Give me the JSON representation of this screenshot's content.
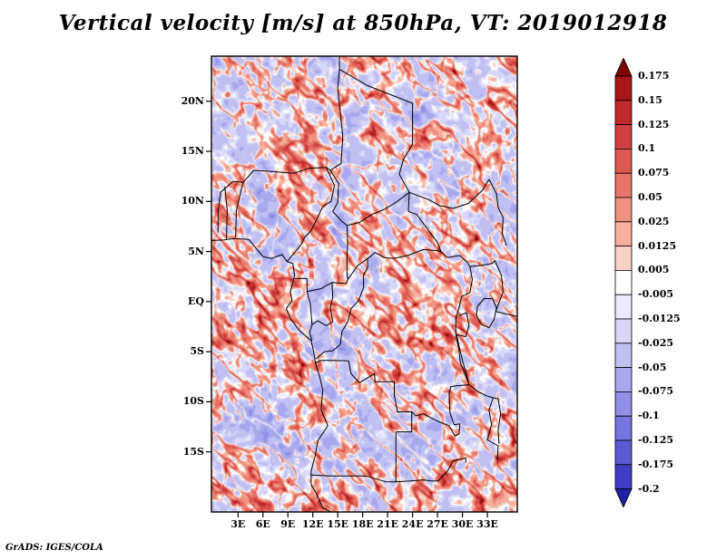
{
  "title": "Vertical velocity [m/s] at 850hPa, VT: 2019012918",
  "footer": "GrADS: IGES/COLA",
  "chart_data": {
    "type": "heatmap",
    "title": "Vertical velocity [m/s] at 850hPa, VT: 2019012918",
    "variable": "Vertical velocity",
    "units": "m/s",
    "pressure_level": "850hPa",
    "valid_time": "2019012918",
    "projection": "latlon",
    "grid": "off",
    "x_axis": {
      "tick_labels": [
        "3E",
        "6E",
        "9E",
        "12E",
        "15E",
        "18E",
        "21E",
        "24E",
        "27E",
        "30E",
        "33E"
      ],
      "tick_values": [
        3,
        6,
        9,
        12,
        15,
        18,
        21,
        24,
        27,
        30,
        33
      ],
      "range": [
        -0.2,
        36.6
      ]
    },
    "y_axis": {
      "tick_labels": [
        "20N",
        "15N",
        "10N",
        "5N",
        "EQ",
        "5S",
        "10S",
        "15S"
      ],
      "tick_values": [
        20,
        15,
        10,
        5,
        0,
        -5,
        -10,
        -15
      ],
      "range": [
        -21.0,
        24.5
      ]
    },
    "colorbar": {
      "position": "right",
      "levels": [
        0.175,
        0.15,
        0.125,
        0.1,
        0.075,
        0.05,
        0.025,
        0.0125,
        0.005,
        -0.005,
        -0.0125,
        -0.025,
        -0.05,
        -0.075,
        -0.1,
        -0.125,
        -0.175,
        -0.2
      ],
      "labels": [
        "0.175",
        "0.15",
        "0.125",
        "0.1",
        "0.075",
        "0.05",
        "0.025",
        "0.0125",
        "0.005",
        "-0.005",
        "-0.0125",
        "-0.025",
        "-0.05",
        "-0.075",
        "-0.1",
        "-0.125",
        "-0.175",
        "-0.2"
      ],
      "colors": [
        "#7f0000",
        "#a81616",
        "#bf2a2a",
        "#d04040",
        "#dd5a52",
        "#e87568",
        "#f09280",
        "#f6b09d",
        "#fbd3c6",
        "#ffffff",
        "#eaeafc",
        "#d7d7f8",
        "#c0c0f3",
        "#a8a8ee",
        "#9090e7",
        "#7676de",
        "#5a5ad2",
        "#3e3ec2",
        "#2020a8"
      ],
      "arrow_top_color": "#7f0000",
      "arrow_bottom_color": "#2020a8"
    }
  }
}
